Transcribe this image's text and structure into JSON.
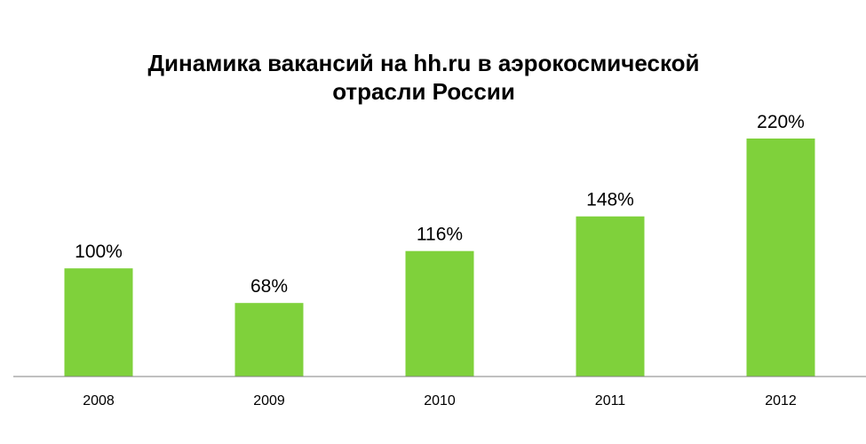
{
  "chart_data": {
    "type": "bar",
    "title": "Динамика вакансий на hh.ru в аэрокосмической отрасли России",
    "title_lines": [
      "Динамика вакансий на hh.ru в аэрокосмической",
      "отрасли России"
    ],
    "categories": [
      "2008",
      "2009",
      "2010",
      "2011",
      "2012"
    ],
    "values": [
      100,
      68,
      116,
      148,
      220
    ],
    "value_labels": [
      "100%",
      "68%",
      "116%",
      "148%",
      "220%"
    ],
    "unit": "%",
    "xlabel": "",
    "ylabel": "",
    "ylim": [
      0,
      220
    ],
    "grid": false,
    "legend": "none",
    "colors": {
      "bar": "#7FD13B",
      "axis": "#808080",
      "text": "#000000"
    }
  }
}
